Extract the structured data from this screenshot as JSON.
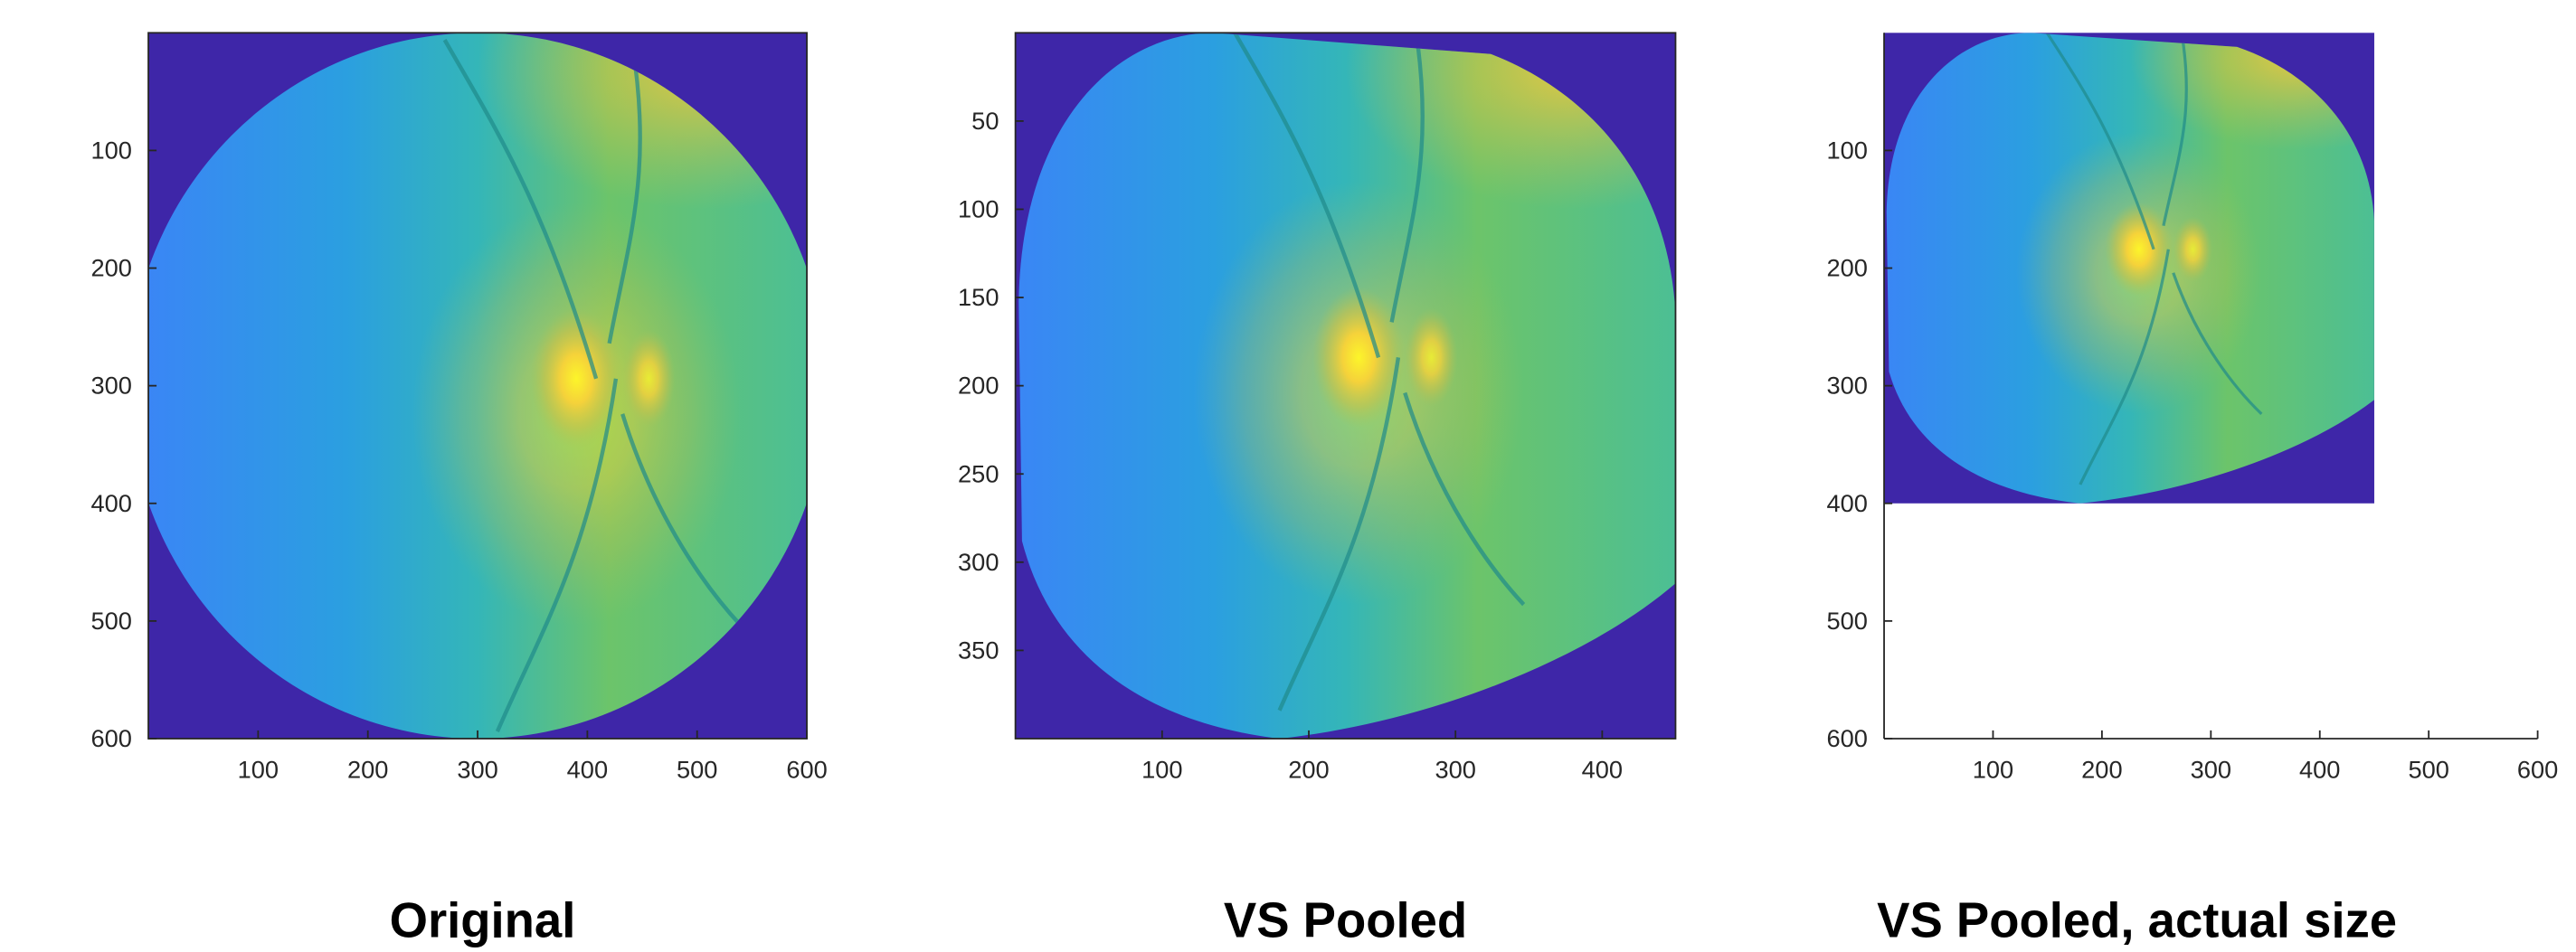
{
  "chart_data": [
    {
      "type": "image",
      "title": "Original",
      "xlim": [
        0,
        600
      ],
      "ylim": [
        0,
        600
      ],
      "xticks": [
        100,
        200,
        300,
        400,
        500,
        600
      ],
      "yticks": [
        100,
        200,
        300,
        400,
        500,
        600
      ]
    },
    {
      "type": "image",
      "title": "VS Pooled",
      "xlim": [
        0,
        450
      ],
      "ylim": [
        0,
        400
      ],
      "xticks": [
        100,
        200,
        300,
        400
      ],
      "yticks": [
        50,
        100,
        150,
        200,
        250,
        300,
        350
      ]
    },
    {
      "type": "image",
      "title": "VS Pooled, actual size",
      "xlim": [
        0,
        600
      ],
      "ylim": [
        0,
        600
      ],
      "xticks": [
        100,
        200,
        300,
        400,
        500,
        600
      ],
      "yticks": [
        100,
        200,
        300,
        400,
        500,
        600
      ]
    }
  ]
}
